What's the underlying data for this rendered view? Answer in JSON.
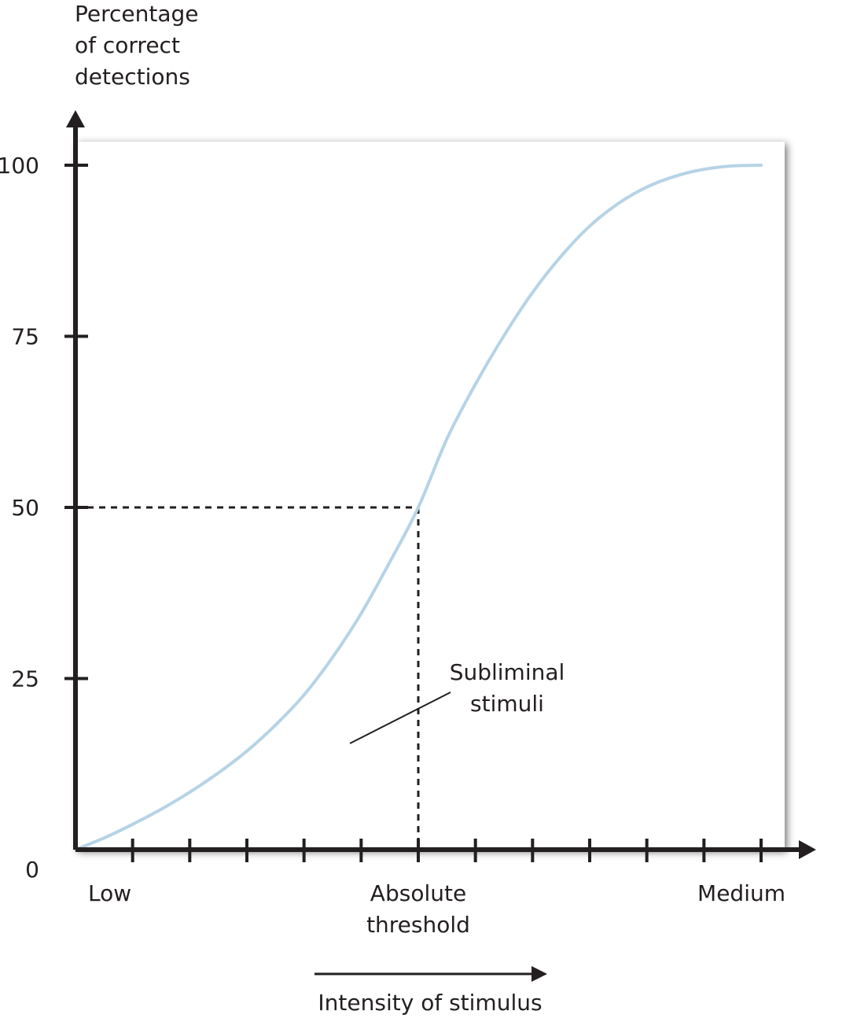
{
  "chart_data": {
    "type": "line",
    "ylabel_lines": [
      "Percentage",
      "of correct",
      "detections"
    ],
    "ytick_values": [
      0,
      25,
      50,
      75,
      100
    ],
    "ylim": [
      0,
      100
    ],
    "xlim": [
      0,
      12
    ],
    "xtick_count": 13,
    "x_category_labels": [
      {
        "x": 0,
        "lines": [
          "Low"
        ]
      },
      {
        "x": 6,
        "lines": [
          "Absolute",
          "threshold"
        ]
      },
      {
        "x": 12,
        "lines": [
          "Medium"
        ]
      }
    ],
    "xlabel": "Intensity of stimulus",
    "threshold": {
      "x": 6,
      "y": 50
    },
    "annotation_lines": [
      "Subliminal",
      "stimuli"
    ],
    "series": [
      {
        "x": [
          0,
          0.5,
          1,
          1.5,
          2,
          2.5,
          3,
          3.5,
          4,
          4.5,
          5,
          5.5,
          6,
          6.5,
          7,
          7.5,
          8,
          8.5,
          9,
          9.5,
          10,
          10.5,
          11,
          11.5,
          12
        ],
        "values": [
          0,
          1.7,
          3.7,
          5.9,
          8.4,
          11.2,
          14.4,
          18.2,
          22.6,
          28.1,
          34.5,
          42,
          50,
          60,
          68,
          75.1,
          81.4,
          86.7,
          91.1,
          94.4,
          96.8,
          98.4,
          99.4,
          99.9,
          100
        ],
        "color": "#b6d3e6"
      }
    ],
    "grid": false,
    "legend": "none",
    "colors": {
      "axis": "#231f20",
      "curve": "#b6d3e6",
      "panel": "#ffffff",
      "shadow": "#000000"
    }
  }
}
